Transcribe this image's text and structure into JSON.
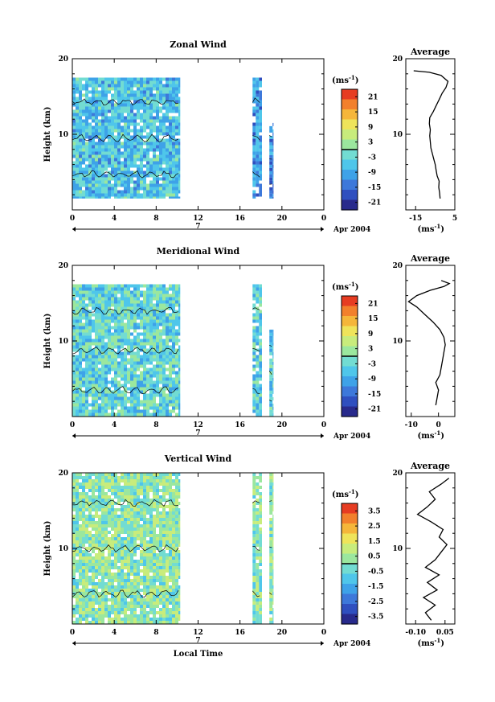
{
  "chart_data": [
    {
      "type": "heatmap",
      "id": "zonal",
      "title": "Zonal Wind",
      "ylabel": "Height (km)",
      "xlabel": "",
      "xlim": [
        0,
        24
      ],
      "ylim": [
        0,
        20
      ],
      "x_ticks": [
        "0",
        "4",
        "8",
        "12",
        "16",
        "20",
        "0"
      ],
      "y_ticks": [
        "20",
        "10"
      ],
      "date_axis": {
        "day_label": "7",
        "month_label": "Apr 2004"
      },
      "colorbar": {
        "unit_label": "(ms",
        "unit_exp": "-1",
        "tick_labels": [
          "21",
          "15",
          "9",
          "3",
          "-3",
          "-9",
          "-15",
          "-21"
        ],
        "range": [
          -24,
          24
        ]
      },
      "data_blocks": [
        {
          "x": [
            0,
            10.3
          ],
          "y": [
            1.5,
            17.5
          ],
          "mean": -6
        },
        {
          "x": [
            17.2,
            18.1
          ],
          "y": [
            1.5,
            17.5
          ],
          "mean": -11
        },
        {
          "x": [
            18.8,
            19.2
          ],
          "y": [
            1.5,
            11.5
          ],
          "mean": -12
        }
      ],
      "profile": {
        "title": "Average",
        "xlim": [
          -20,
          5
        ],
        "x_tick_labels": [
          "-15",
          "5"
        ],
        "x_tick_values": [
          -15,
          5
        ],
        "y_ticks": [
          "20",
          "10"
        ],
        "xlabel_unit": "(ms",
        "xlabel_exp": "-1",
        "points": [
          [
            -2.5,
            1.5
          ],
          [
            -2.8,
            2.3
          ],
          [
            -3.2,
            3.0
          ],
          [
            -3.0,
            3.8
          ],
          [
            -4.0,
            4.5
          ],
          [
            -4.5,
            5.2
          ],
          [
            -5.0,
            6.0
          ],
          [
            -5.8,
            6.8
          ],
          [
            -6.5,
            7.5
          ],
          [
            -7.2,
            8.2
          ],
          [
            -7.5,
            9.0
          ],
          [
            -7.8,
            9.8
          ],
          [
            -7.5,
            10.6
          ],
          [
            -8.0,
            11.4
          ],
          [
            -7.8,
            12.2
          ],
          [
            -6.0,
            13.0
          ],
          [
            -4.5,
            13.8
          ],
          [
            -3.0,
            14.6
          ],
          [
            -1.5,
            15.4
          ],
          [
            0.5,
            16.2
          ],
          [
            1.5,
            17.0
          ],
          [
            -2.0,
            17.8
          ],
          [
            -8.0,
            18.2
          ],
          [
            -16.0,
            18.4
          ]
        ]
      }
    },
    {
      "type": "heatmap",
      "id": "meridional",
      "title": "Meridional Wind",
      "ylabel": "Height (km)",
      "xlabel": "",
      "xlim": [
        0,
        24
      ],
      "ylim": [
        0,
        20
      ],
      "x_ticks": [
        "0",
        "4",
        "8",
        "12",
        "16",
        "20",
        "0"
      ],
      "y_ticks": [
        "20",
        "10"
      ],
      "date_axis": {
        "day_label": "7",
        "month_label": "Apr 2004"
      },
      "colorbar": {
        "unit_label": "(ms",
        "unit_exp": "-1",
        "tick_labels": [
          "21",
          "15",
          "9",
          "3",
          "-3",
          "-9",
          "-15",
          "-21"
        ],
        "range": [
          -24,
          24
        ]
      },
      "data_blocks": [
        {
          "x": [
            0,
            10.3
          ],
          "y": [
            0,
            17.5
          ],
          "mean": -3
        },
        {
          "x": [
            17.2,
            18.1
          ],
          "y": [
            0,
            17.5
          ],
          "mean": -4
        },
        {
          "x": [
            18.8,
            19.2
          ],
          "y": [
            0,
            11.5
          ],
          "mean": -5
        }
      ],
      "profile": {
        "title": "Average",
        "xlim": [
          -12,
          6
        ],
        "x_tick_labels": [
          "-10",
          "0"
        ],
        "x_tick_values": [
          -10,
          0
        ],
        "y_ticks": [
          "20",
          "10"
        ],
        "xlabel_unit": "(ms",
        "xlabel_exp": "-1",
        "points": [
          [
            -1.0,
            1.5
          ],
          [
            -0.5,
            2.5
          ],
          [
            0.0,
            3.5
          ],
          [
            -1.0,
            4.5
          ],
          [
            0.5,
            5.5
          ],
          [
            1.0,
            6.5
          ],
          [
            1.5,
            7.5
          ],
          [
            2.0,
            8.5
          ],
          [
            2.5,
            9.5
          ],
          [
            2.0,
            10.5
          ],
          [
            0.5,
            11.5
          ],
          [
            -2.0,
            12.5
          ],
          [
            -5.0,
            13.5
          ],
          [
            -8.0,
            14.5
          ],
          [
            -11.0,
            15.2
          ],
          [
            -8.0,
            16.0
          ],
          [
            -3.0,
            16.7
          ],
          [
            2.0,
            17.2
          ],
          [
            4.0,
            17.6
          ],
          [
            1.0,
            18.0
          ]
        ]
      }
    },
    {
      "type": "heatmap",
      "id": "vertical",
      "title": "Vertical Wind",
      "ylabel": "Height (km)",
      "xlabel": "Local Time",
      "xlim": [
        0,
        24
      ],
      "ylim": [
        0,
        20
      ],
      "x_ticks": [
        "0",
        "4",
        "8",
        "12",
        "16",
        "20",
        "0"
      ],
      "y_ticks": [
        "20",
        "10"
      ],
      "date_axis": {
        "day_label": "7",
        "month_label": "Apr 2004"
      },
      "colorbar": {
        "unit_label": "(ms",
        "unit_exp": "-1",
        "tick_labels": [
          "3.5",
          "2.5",
          "1.5",
          "0.5",
          "-0.5",
          "-1.5",
          "-2.5",
          "-3.5"
        ],
        "range": [
          -4,
          4
        ]
      },
      "data_blocks": [
        {
          "x": [
            0,
            10.3
          ],
          "y": [
            0,
            20
          ],
          "mean": 0.2
        },
        {
          "x": [
            17.2,
            18.1
          ],
          "y": [
            0,
            20
          ],
          "mean": 0.2
        },
        {
          "x": [
            18.8,
            19.2
          ],
          "y": [
            0,
            20
          ],
          "mean": 0.2
        }
      ],
      "profile": {
        "title": "Average",
        "xlim": [
          -0.15,
          0.1
        ],
        "x_tick_labels": [
          "-0.10",
          "0.05"
        ],
        "x_tick_values": [
          -0.1,
          0.05
        ],
        "y_ticks": [
          "20",
          "10"
        ],
        "xlabel_unit": "(ms",
        "xlabel_exp": "-1",
        "points": [
          [
            -0.02,
            0.5
          ],
          [
            -0.05,
            1.5
          ],
          [
            0.0,
            2.5
          ],
          [
            -0.06,
            3.5
          ],
          [
            0.01,
            4.5
          ],
          [
            -0.04,
            5.5
          ],
          [
            0.02,
            6.5
          ],
          [
            -0.05,
            7.5
          ],
          [
            0.0,
            8.5
          ],
          [
            0.03,
            9.5
          ],
          [
            0.06,
            10.5
          ],
          [
            0.02,
            11.5
          ],
          [
            0.04,
            12.5
          ],
          [
            -0.02,
            13.5
          ],
          [
            -0.09,
            14.5
          ],
          [
            -0.04,
            15.5
          ],
          [
            0.0,
            16.5
          ],
          [
            -0.03,
            17.5
          ],
          [
            0.03,
            18.5
          ],
          [
            0.07,
            19.3
          ]
        ]
      }
    }
  ]
}
